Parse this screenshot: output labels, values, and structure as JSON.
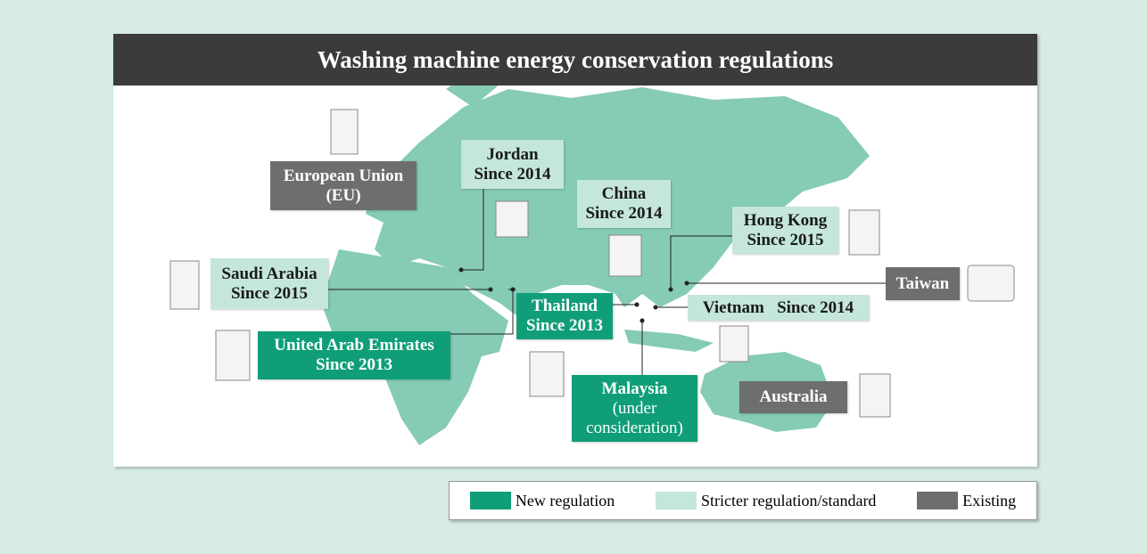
{
  "title": "Washing machine energy conservation regulations",
  "regions": [
    {
      "lines": [
        "European Union",
        "(EU)"
      ],
      "color": "#6d6e70",
      "text_color": "#ffffff"
    },
    {
      "lines": [
        "Jordan",
        "Since 2014"
      ],
      "color": "#c5e6da",
      "text_color": "#1a1a1a"
    },
    {
      "lines": [
        "China",
        "Since 2014"
      ],
      "color": "#c5e6da",
      "text_color": "#1a1a1a"
    },
    {
      "lines": [
        "Hong Kong",
        "Since 2015"
      ],
      "color": "#c5e6da",
      "text_color": "#1a1a1a"
    },
    {
      "lines": [
        "Saudi Arabia",
        "Since 2015"
      ],
      "color": "#c5e6da",
      "text_color": "#1a1a1a"
    },
    {
      "lines": [
        "Taiwan"
      ],
      "color": "#6d6e70",
      "text_color": "#ffffff"
    },
    {
      "lines": [
        "Thailand",
        "Since 2013"
      ],
      "color": "#0f9e78",
      "text_color": "#ffffff"
    },
    {
      "lines": [
        "Vietnam   Since 2014"
      ],
      "color": "#c5e6da",
      "text_color": "#1a1a1a"
    },
    {
      "lines": [
        "United Arab Emirates",
        "Since 2013"
      ],
      "color": "#0f9e78",
      "text_color": "#ffffff"
    },
    {
      "lines": [
        "Malaysia",
        "(under",
        "consideration)"
      ],
      "color": "#0f9e78",
      "text_color": "#ffffff"
    },
    {
      "lines": [
        "Australia"
      ],
      "color": "#6d6e70",
      "text_color": "#ffffff"
    }
  ],
  "legend": [
    {
      "label": "New regulation",
      "color": "#0f9e78"
    },
    {
      "label": "Stricter regulation/standard",
      "color": "#c5e6da"
    },
    {
      "label": "Existing",
      "color": "#6d6e70"
    }
  ]
}
